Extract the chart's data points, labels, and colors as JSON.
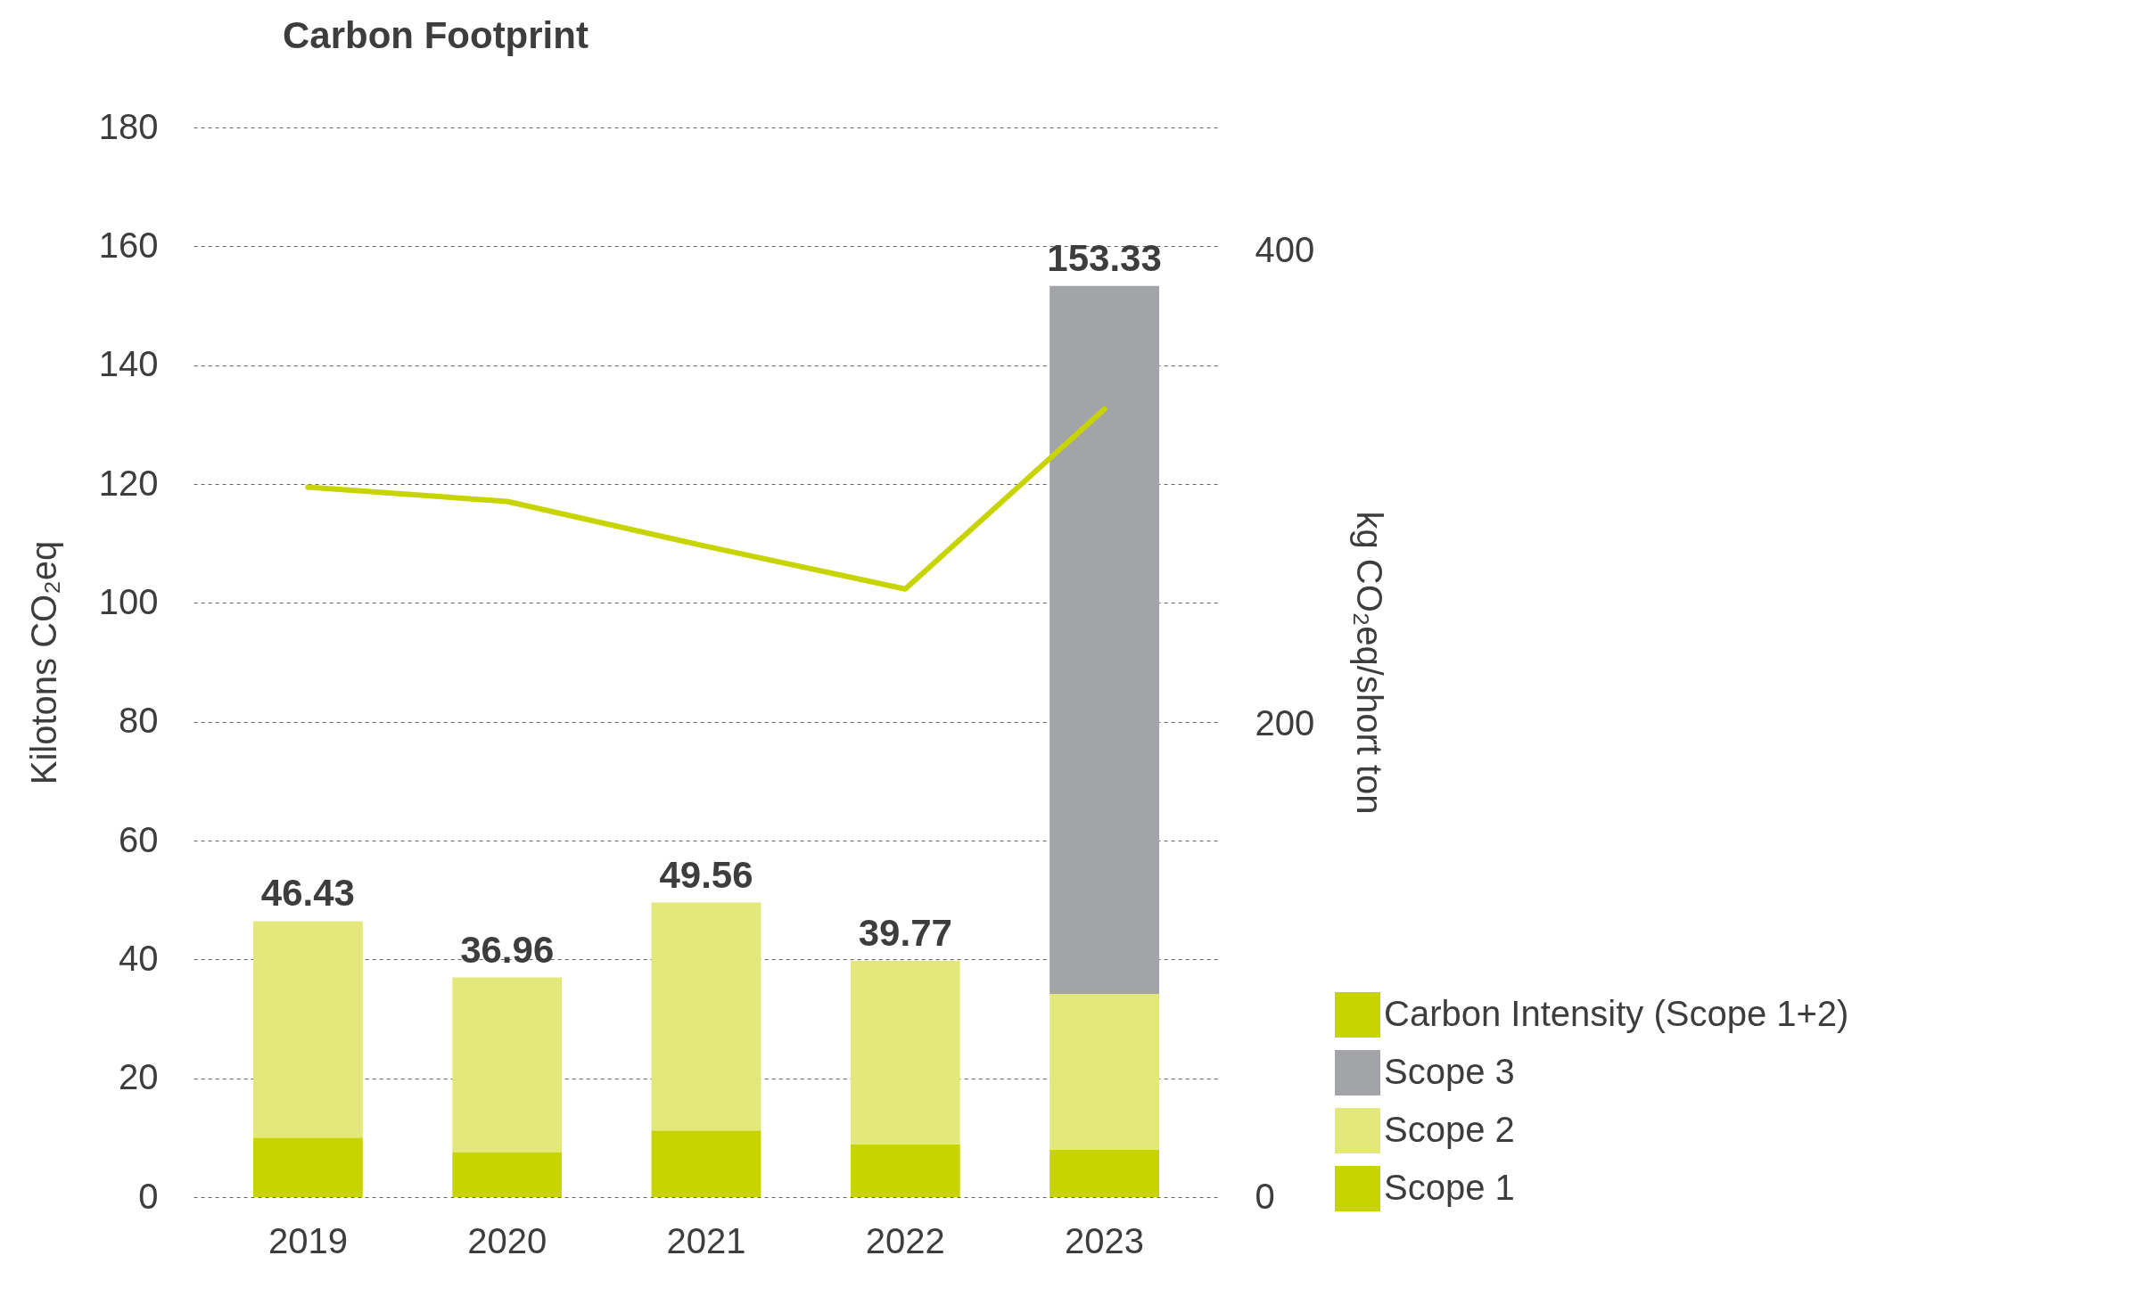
{
  "chart_data": {
    "type": "bar",
    "title": "Carbon Footprint",
    "ylabel": "Kilotons CO₂eq",
    "y2label": "kg CO₂eq/short ton",
    "categories": [
      "2019",
      "2020",
      "2021",
      "2022",
      "2023"
    ],
    "stacked": true,
    "series": [
      {
        "name": "Scope 1",
        "color": "#c8d400",
        "values": [
          10.0,
          7.5,
          11.2,
          8.9,
          8.0
        ]
      },
      {
        "name": "Scope 2",
        "color": "#e2e97a",
        "values": [
          36.43,
          29.46,
          38.36,
          30.87,
          26.2
        ]
      },
      {
        "name": "Scope 3",
        "color": "#a2a4a7",
        "values": [
          null,
          null,
          null,
          null,
          119.13
        ]
      },
      {
        "name": "Carbon Intensity (Scope 1+2)",
        "color": "#c8d400",
        "type": "line",
        "axis": "y2",
        "values": [
          300,
          294,
          275,
          257,
          333
        ]
      }
    ],
    "totals": [
      "46.43",
      "36.96",
      "49.56",
      "39.77",
      "153.33"
    ],
    "ylim": [
      0,
      180
    ],
    "yticks": [
      0,
      20,
      40,
      60,
      80,
      100,
      120,
      140,
      160,
      180
    ],
    "y2lim": [
      0,
      452
    ],
    "y2ticks": [
      0,
      200,
      400
    ],
    "grid": "y",
    "legend": "bottom right"
  }
}
